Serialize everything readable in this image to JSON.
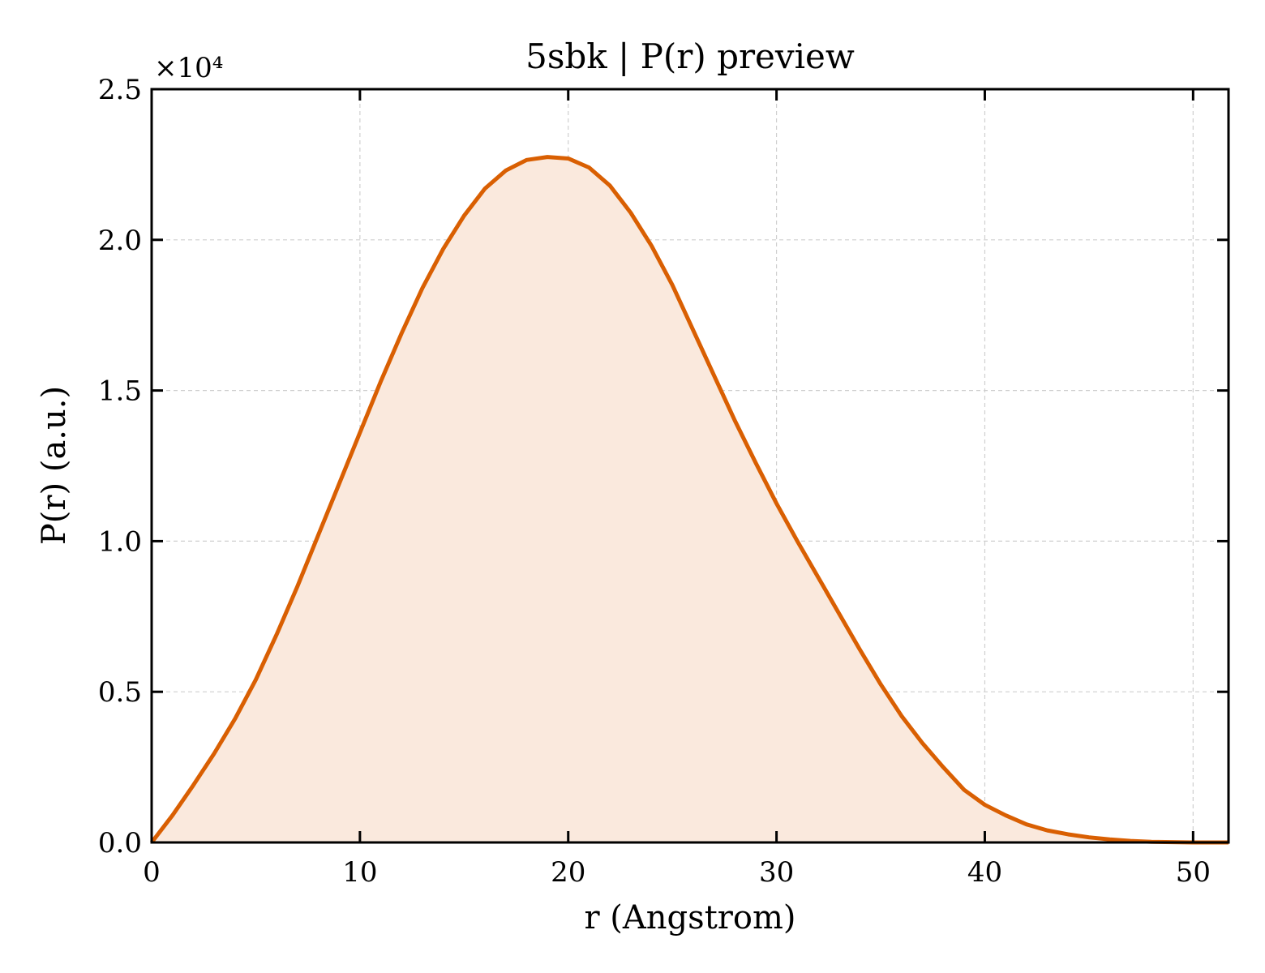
{
  "chart_data": {
    "type": "area",
    "title": "5sbk | P(r) preview",
    "xlabel": "r (Angstrom)",
    "ylabel": "P(r) (a.u.)",
    "y_scale_multiplier": "×10⁴",
    "xlim": [
      0,
      51.7
    ],
    "ylim": [
      0,
      25000
    ],
    "xticks": [
      0,
      10,
      20,
      30,
      40,
      50
    ],
    "xtick_labels": [
      "0",
      "10",
      "20",
      "30",
      "40",
      "50"
    ],
    "yticks": [
      0,
      5000,
      10000,
      15000,
      20000,
      25000
    ],
    "ytick_labels": [
      "0.0",
      "0.5",
      "1.0",
      "1.5",
      "2.0",
      "2.5"
    ],
    "grid": true,
    "colors": {
      "line": "#d95f02",
      "fill": "#fae9dd"
    },
    "series": [
      {
        "x": [
          0,
          1,
          2,
          3,
          4,
          5,
          6,
          7,
          8,
          9,
          10,
          11,
          12,
          13,
          14,
          15,
          16,
          17,
          18,
          19,
          20,
          21,
          22,
          23,
          24,
          25,
          26,
          27,
          28,
          29,
          30,
          31,
          32,
          33,
          34,
          35,
          36,
          37,
          38,
          39,
          40,
          41,
          42,
          43,
          44,
          45,
          46,
          47,
          48,
          49,
          50,
          51,
          51.7
        ],
        "y": [
          0,
          900,
          1900,
          2950,
          4100,
          5400,
          6900,
          8500,
          10200,
          11900,
          13600,
          15300,
          16900,
          18400,
          19700,
          20800,
          21700,
          22300,
          22650,
          22750,
          22700,
          22400,
          21800,
          20900,
          19800,
          18500,
          17000,
          15500,
          14000,
          12600,
          11250,
          10000,
          8800,
          7600,
          6400,
          5250,
          4200,
          3300,
          2500,
          1750,
          1250,
          900,
          600,
          400,
          270,
          170,
          100,
          50,
          20,
          10,
          0,
          0,
          0
        ]
      }
    ]
  }
}
